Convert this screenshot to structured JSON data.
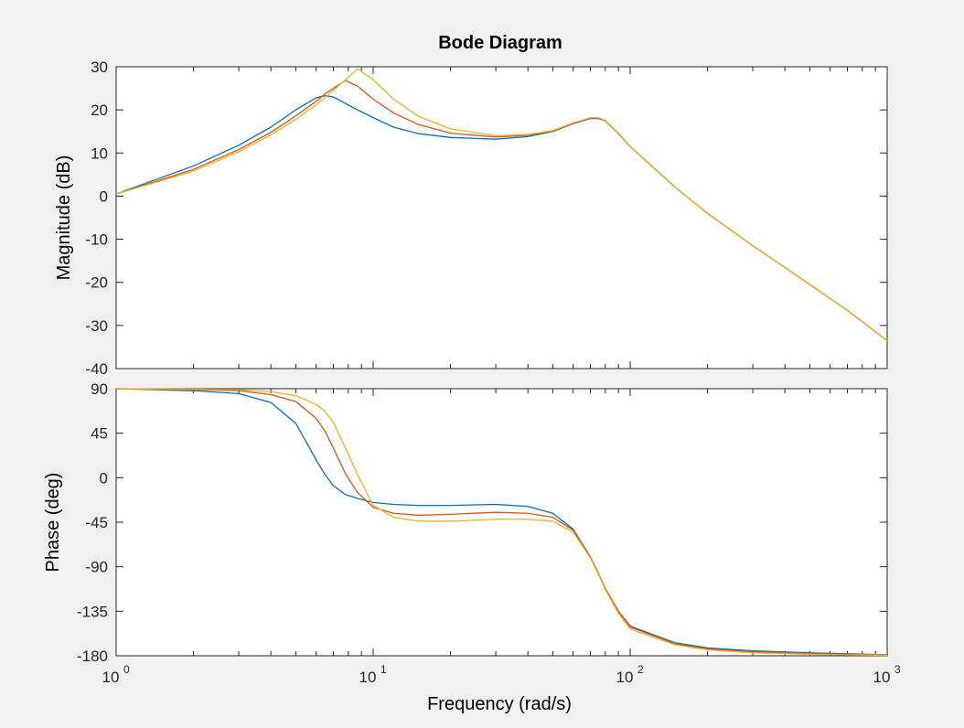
{
  "chart_data": {
    "type": "line",
    "title": "Bode Diagram",
    "xlabel": "Frequency  (rad/s)",
    "xscale": "log",
    "xlim": [
      1,
      1000
    ],
    "x_ticks": [
      {
        "base": "10",
        "exp": "0"
      },
      {
        "base": "10",
        "exp": "1"
      },
      {
        "base": "10",
        "exp": "2"
      },
      {
        "base": "10",
        "exp": "3"
      }
    ],
    "grid": false,
    "colors": [
      "#0072BD",
      "#D95319",
      "#EDB120"
    ],
    "x": [
      1,
      2,
      3,
      4,
      5,
      6,
      6.5,
      7,
      7.8,
      8.7,
      10,
      12,
      15,
      20,
      30,
      40,
      50,
      60,
      70,
      75,
      80,
      90,
      100,
      150,
      200,
      300,
      500,
      700,
      1000
    ],
    "panels": [
      {
        "ylabel": "Magnitude (dB)",
        "ylim": [
          -40,
          30
        ],
        "yticks": [
          "30",
          "20",
          "10",
          "0",
          "-10",
          "-20",
          "-30",
          "-40"
        ],
        "series": [
          {
            "values": [
              0.5,
              7.0,
              11.8,
              16.0,
              20.0,
              22.8,
              23.3,
              23.0,
              21.5,
              20.0,
              18.2,
              16.0,
              14.5,
              13.6,
              13.2,
              13.8,
              15.0,
              16.8,
              18.0,
              18.0,
              17.5,
              14.5,
              11.5,
              2.0,
              -4.0,
              -11.5,
              -20.5,
              -26.5,
              -33.5
            ]
          },
          {
            "values": [
              0.5,
              6.2,
              10.8,
              14.8,
              18.6,
              22.0,
              23.7,
              25.0,
              26.8,
              25.5,
              22.5,
              19.3,
              16.6,
              14.6,
              13.7,
              14.1,
              15.1,
              16.9,
              18.1,
              18.1,
              17.5,
              14.5,
              11.5,
              2.0,
              -4.0,
              -11.5,
              -20.5,
              -26.5,
              -33.5
            ]
          },
          {
            "values": [
              0.5,
              5.8,
              10.3,
              14.2,
              17.8,
              21.2,
              22.9,
              24.5,
              27.0,
              29.5,
              27.0,
              22.5,
              18.5,
              15.6,
              14.0,
              14.3,
              15.2,
              17.0,
              18.2,
              18.2,
              17.6,
              14.6,
              11.5,
              2.0,
              -4.0,
              -11.5,
              -20.5,
              -26.5,
              -33.5
            ]
          }
        ]
      },
      {
        "ylabel": "Phase (deg)",
        "ylim": [
          -180,
          90
        ],
        "yticks": [
          "90",
          "45",
          "0",
          "-45",
          "-90",
          "-135",
          "-180"
        ],
        "series": [
          {
            "values": [
              90,
              88,
              85,
              76,
              55,
              18,
              3,
              -8,
              -17,
              -21,
              -25,
              -27,
              -28,
              -28,
              -27,
              -29,
              -36,
              -52,
              -80,
              -96,
              -112,
              -135,
              -150,
              -167,
              -172,
              -175,
              -177,
              -178,
              -179
            ]
          },
          {
            "values": [
              90,
              89,
              88,
              84,
              77,
              60,
              47,
              30,
              4,
              -15,
              -30,
              -36,
              -38,
              -37,
              -35,
              -36,
              -40,
              -53,
              -80,
              -96,
              -112,
              -135,
              -151,
              -168,
              -173,
              -176,
              -178,
              -178.5,
              -179
            ]
          },
          {
            "values": [
              90,
              89.5,
              89,
              87,
              83,
              74,
              67,
              56,
              30,
              3,
              -28,
              -40,
              -44,
              -44,
              -42,
              -42,
              -44,
              -55,
              -81,
              -97,
              -113,
              -137,
              -153,
              -169,
              -174,
              -177,
              -178.5,
              -179,
              -179.5
            ]
          }
        ]
      }
    ]
  }
}
